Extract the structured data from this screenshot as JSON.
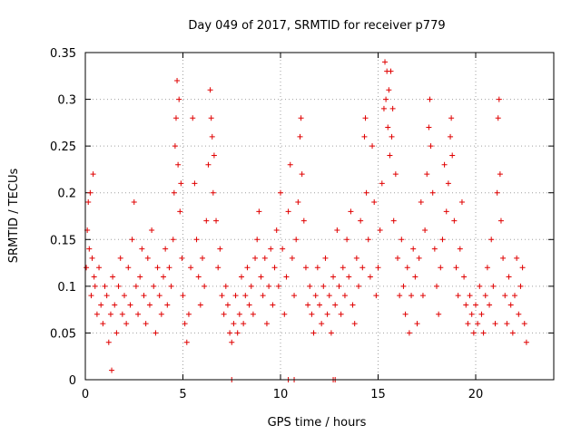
{
  "chart_data": {
    "type": "scatter",
    "title": "Day 049 of 2017, SRMTID for receiver p779",
    "xlabel": "GPS time / hours",
    "ylabel": "SRMTID / TECUs",
    "xlim": [
      0,
      24
    ],
    "ylim": [
      0,
      0.35
    ],
    "grid": true,
    "marker": "+",
    "color": "#e00000",
    "x_ticks": [
      {
        "value": 0,
        "label": "0"
      },
      {
        "value": 5,
        "label": "5"
      },
      {
        "value": 10,
        "label": "10"
      },
      {
        "value": 15,
        "label": "15"
      },
      {
        "value": 20,
        "label": "20"
      }
    ],
    "y_ticks": [
      {
        "value": 0,
        "label": "0"
      },
      {
        "value": 0.05,
        "label": "0.05"
      },
      {
        "value": 0.1,
        "label": "0.1"
      },
      {
        "value": 0.15,
        "label": "0.15"
      },
      {
        "value": 0.2,
        "label": "0.2"
      },
      {
        "value": 0.25,
        "label": "0.25"
      },
      {
        "value": 0.3,
        "label": "0.3"
      },
      {
        "value": 0.35,
        "label": "0.35"
      }
    ],
    "series": [
      {
        "name": "SRMTID",
        "points": [
          [
            0.05,
            0.12
          ],
          [
            0.1,
            0.16
          ],
          [
            0.15,
            0.19
          ],
          [
            0.2,
            0.14
          ],
          [
            0.25,
            0.2
          ],
          [
            0.3,
            0.09
          ],
          [
            0.35,
            0.13
          ],
          [
            0.4,
            0.22
          ],
          [
            0.45,
            0.11
          ],
          [
            0.5,
            0.1
          ],
          [
            0.6,
            0.07
          ],
          [
            0.7,
            0.12
          ],
          [
            0.8,
            0.08
          ],
          [
            0.9,
            0.06
          ],
          [
            1.0,
            0.1
          ],
          [
            1.1,
            0.09
          ],
          [
            1.2,
            0.04
          ],
          [
            1.3,
            0.07
          ],
          [
            1.35,
            0.01
          ],
          [
            1.4,
            0.11
          ],
          [
            1.5,
            0.08
          ],
          [
            1.6,
            0.05
          ],
          [
            1.7,
            0.1
          ],
          [
            1.8,
            0.13
          ],
          [
            1.9,
            0.07
          ],
          [
            2.0,
            0.09
          ],
          [
            2.1,
            0.06
          ],
          [
            2.2,
            0.12
          ],
          [
            2.3,
            0.08
          ],
          [
            2.4,
            0.15
          ],
          [
            2.5,
            0.19
          ],
          [
            2.6,
            0.1
          ],
          [
            2.7,
            0.07
          ],
          [
            2.8,
            0.11
          ],
          [
            2.9,
            0.14
          ],
          [
            3.0,
            0.09
          ],
          [
            3.1,
            0.06
          ],
          [
            3.2,
            0.13
          ],
          [
            3.3,
            0.08
          ],
          [
            3.4,
            0.16
          ],
          [
            3.5,
            0.1
          ],
          [
            3.6,
            0.05
          ],
          [
            3.7,
            0.12
          ],
          [
            3.8,
            0.09
          ],
          [
            3.9,
            0.07
          ],
          [
            4.0,
            0.11
          ],
          [
            4.1,
            0.14
          ],
          [
            4.2,
            0.08
          ],
          [
            4.3,
            0.12
          ],
          [
            4.4,
            0.1
          ],
          [
            4.5,
            0.15
          ],
          [
            4.55,
            0.2
          ],
          [
            4.6,
            0.25
          ],
          [
            4.65,
            0.28
          ],
          [
            4.7,
            0.32
          ],
          [
            4.75,
            0.23
          ],
          [
            4.8,
            0.3
          ],
          [
            4.85,
            0.18
          ],
          [
            4.9,
            0.21
          ],
          [
            4.95,
            0.13
          ],
          [
            5.0,
            0.09
          ],
          [
            5.1,
            0.06
          ],
          [
            5.2,
            0.04
          ],
          [
            5.3,
            0.07
          ],
          [
            5.4,
            0.12
          ],
          [
            5.5,
            0.28
          ],
          [
            5.6,
            0.21
          ],
          [
            5.7,
            0.15
          ],
          [
            5.8,
            0.11
          ],
          [
            5.9,
            0.08
          ],
          [
            6.0,
            0.13
          ],
          [
            6.1,
            0.1
          ],
          [
            6.2,
            0.17
          ],
          [
            6.3,
            0.23
          ],
          [
            6.4,
            0.31
          ],
          [
            6.45,
            0.28
          ],
          [
            6.5,
            0.26
          ],
          [
            6.55,
            0.2
          ],
          [
            6.6,
            0.24
          ],
          [
            6.7,
            0.17
          ],
          [
            6.8,
            0.12
          ],
          [
            6.9,
            0.14
          ],
          [
            7.0,
            0.09
          ],
          [
            7.1,
            0.07
          ],
          [
            7.2,
            0.1
          ],
          [
            7.3,
            0.08
          ],
          [
            7.4,
            0.05
          ],
          [
            7.5,
            0.04
          ],
          [
            7.6,
            0.06
          ],
          [
            7.7,
            0.09
          ],
          [
            7.8,
            0.05
          ],
          [
            7.9,
            0.07
          ],
          [
            8.0,
            0.11
          ],
          [
            8.1,
            0.06
          ],
          [
            8.2,
            0.09
          ],
          [
            8.3,
            0.12
          ],
          [
            8.4,
            0.08
          ],
          [
            8.5,
            0.1
          ],
          [
            8.6,
            0.07
          ],
          [
            8.7,
            0.13
          ],
          [
            8.8,
            0.15
          ],
          [
            8.9,
            0.18
          ],
          [
            9.0,
            0.11
          ],
          [
            9.1,
            0.09
          ],
          [
            9.2,
            0.13
          ],
          [
            9.3,
            0.06
          ],
          [
            9.4,
            0.1
          ],
          [
            9.5,
            0.14
          ],
          [
            9.6,
            0.08
          ],
          [
            9.7,
            0.12
          ],
          [
            9.8,
            0.16
          ],
          [
            9.9,
            0.1
          ],
          [
            10.0,
            0.2
          ],
          [
            10.1,
            0.14
          ],
          [
            10.2,
            0.07
          ],
          [
            10.3,
            0.11
          ],
          [
            10.4,
            0.18
          ],
          [
            10.5,
            0.23
          ],
          [
            10.6,
            0.13
          ],
          [
            10.7,
            0.09
          ],
          [
            10.8,
            0.15
          ],
          [
            10.9,
            0.19
          ],
          [
            11.0,
            0.26
          ],
          [
            11.05,
            0.28
          ],
          [
            11.1,
            0.22
          ],
          [
            11.2,
            0.17
          ],
          [
            11.3,
            0.12
          ],
          [
            11.4,
            0.08
          ],
          [
            11.5,
            0.1
          ],
          [
            11.6,
            0.07
          ],
          [
            11.7,
            0.05
          ],
          [
            11.8,
            0.09
          ],
          [
            11.9,
            0.12
          ],
          [
            12.0,
            0.08
          ],
          [
            12.1,
            0.06
          ],
          [
            12.2,
            0.1
          ],
          [
            12.3,
            0.13
          ],
          [
            12.4,
            0.07
          ],
          [
            12.5,
            0.09
          ],
          [
            12.6,
            0.05
          ],
          [
            12.7,
            0.11
          ],
          [
            12.8,
            0.08
          ],
          [
            12.9,
            0.16
          ],
          [
            13.0,
            0.1
          ],
          [
            13.1,
            0.07
          ],
          [
            13.2,
            0.12
          ],
          [
            13.3,
            0.09
          ],
          [
            13.4,
            0.15
          ],
          [
            13.5,
            0.11
          ],
          [
            13.6,
            0.18
          ],
          [
            13.7,
            0.08
          ],
          [
            13.8,
            0.06
          ],
          [
            13.9,
            0.13
          ],
          [
            14.0,
            0.1
          ],
          [
            14.1,
            0.17
          ],
          [
            14.2,
            0.12
          ],
          [
            14.3,
            0.26
          ],
          [
            14.35,
            0.28
          ],
          [
            14.4,
            0.2
          ],
          [
            14.5,
            0.15
          ],
          [
            14.6,
            0.11
          ],
          [
            14.7,
            0.25
          ],
          [
            14.8,
            0.19
          ],
          [
            14.9,
            0.09
          ],
          [
            15.0,
            0.12
          ],
          [
            15.1,
            0.16
          ],
          [
            15.2,
            0.21
          ],
          [
            15.3,
            0.29
          ],
          [
            15.35,
            0.34
          ],
          [
            15.4,
            0.3
          ],
          [
            15.45,
            0.33
          ],
          [
            15.5,
            0.27
          ],
          [
            15.55,
            0.31
          ],
          [
            15.6,
            0.24
          ],
          [
            15.65,
            0.33
          ],
          [
            15.7,
            0.26
          ],
          [
            15.75,
            0.29
          ],
          [
            15.8,
            0.17
          ],
          [
            15.9,
            0.22
          ],
          [
            16.0,
            0.13
          ],
          [
            16.1,
            0.09
          ],
          [
            16.2,
            0.15
          ],
          [
            16.3,
            0.1
          ],
          [
            16.4,
            0.07
          ],
          [
            16.5,
            0.12
          ],
          [
            16.6,
            0.05
          ],
          [
            16.7,
            0.09
          ],
          [
            16.8,
            0.14
          ],
          [
            16.9,
            0.11
          ],
          [
            17.0,
            0.06
          ],
          [
            17.1,
            0.13
          ],
          [
            17.2,
            0.19
          ],
          [
            17.3,
            0.09
          ],
          [
            17.4,
            0.16
          ],
          [
            17.5,
            0.22
          ],
          [
            17.6,
            0.27
          ],
          [
            17.65,
            0.3
          ],
          [
            17.7,
            0.25
          ],
          [
            17.8,
            0.2
          ],
          [
            17.9,
            0.14
          ],
          [
            18.0,
            0.1
          ],
          [
            18.1,
            0.07
          ],
          [
            18.2,
            0.12
          ],
          [
            18.3,
            0.15
          ],
          [
            18.4,
            0.23
          ],
          [
            18.5,
            0.18
          ],
          [
            18.6,
            0.21
          ],
          [
            18.7,
            0.26
          ],
          [
            18.75,
            0.28
          ],
          [
            18.8,
            0.24
          ],
          [
            18.9,
            0.17
          ],
          [
            19.0,
            0.12
          ],
          [
            19.1,
            0.09
          ],
          [
            19.2,
            0.14
          ],
          [
            19.3,
            0.19
          ],
          [
            19.4,
            0.11
          ],
          [
            19.5,
            0.08
          ],
          [
            19.6,
            0.06
          ],
          [
            19.7,
            0.09
          ],
          [
            19.8,
            0.07
          ],
          [
            19.9,
            0.05
          ],
          [
            20.0,
            0.08
          ],
          [
            20.1,
            0.06
          ],
          [
            20.2,
            0.1
          ],
          [
            20.3,
            0.07
          ],
          [
            20.4,
            0.05
          ],
          [
            20.5,
            0.09
          ],
          [
            20.6,
            0.12
          ],
          [
            20.7,
            0.08
          ],
          [
            20.8,
            0.15
          ],
          [
            20.9,
            0.1
          ],
          [
            21.0,
            0.06
          ],
          [
            21.1,
            0.2
          ],
          [
            21.15,
            0.28
          ],
          [
            21.2,
            0.3
          ],
          [
            21.25,
            0.22
          ],
          [
            21.3,
            0.17
          ],
          [
            21.4,
            0.13
          ],
          [
            21.5,
            0.09
          ],
          [
            21.6,
            0.06
          ],
          [
            21.7,
            0.11
          ],
          [
            21.8,
            0.08
          ],
          [
            21.9,
            0.05
          ],
          [
            22.0,
            0.09
          ],
          [
            22.1,
            0.13
          ],
          [
            22.2,
            0.07
          ],
          [
            22.3,
            0.1
          ],
          [
            22.4,
            0.12
          ],
          [
            22.5,
            0.06
          ],
          [
            22.6,
            0.04
          ],
          [
            7.5,
            0.0
          ],
          [
            10.4,
            0.0
          ],
          [
            10.7,
            0.0
          ],
          [
            12.7,
            0.0
          ],
          [
            12.8,
            0.0
          ]
        ]
      }
    ]
  }
}
